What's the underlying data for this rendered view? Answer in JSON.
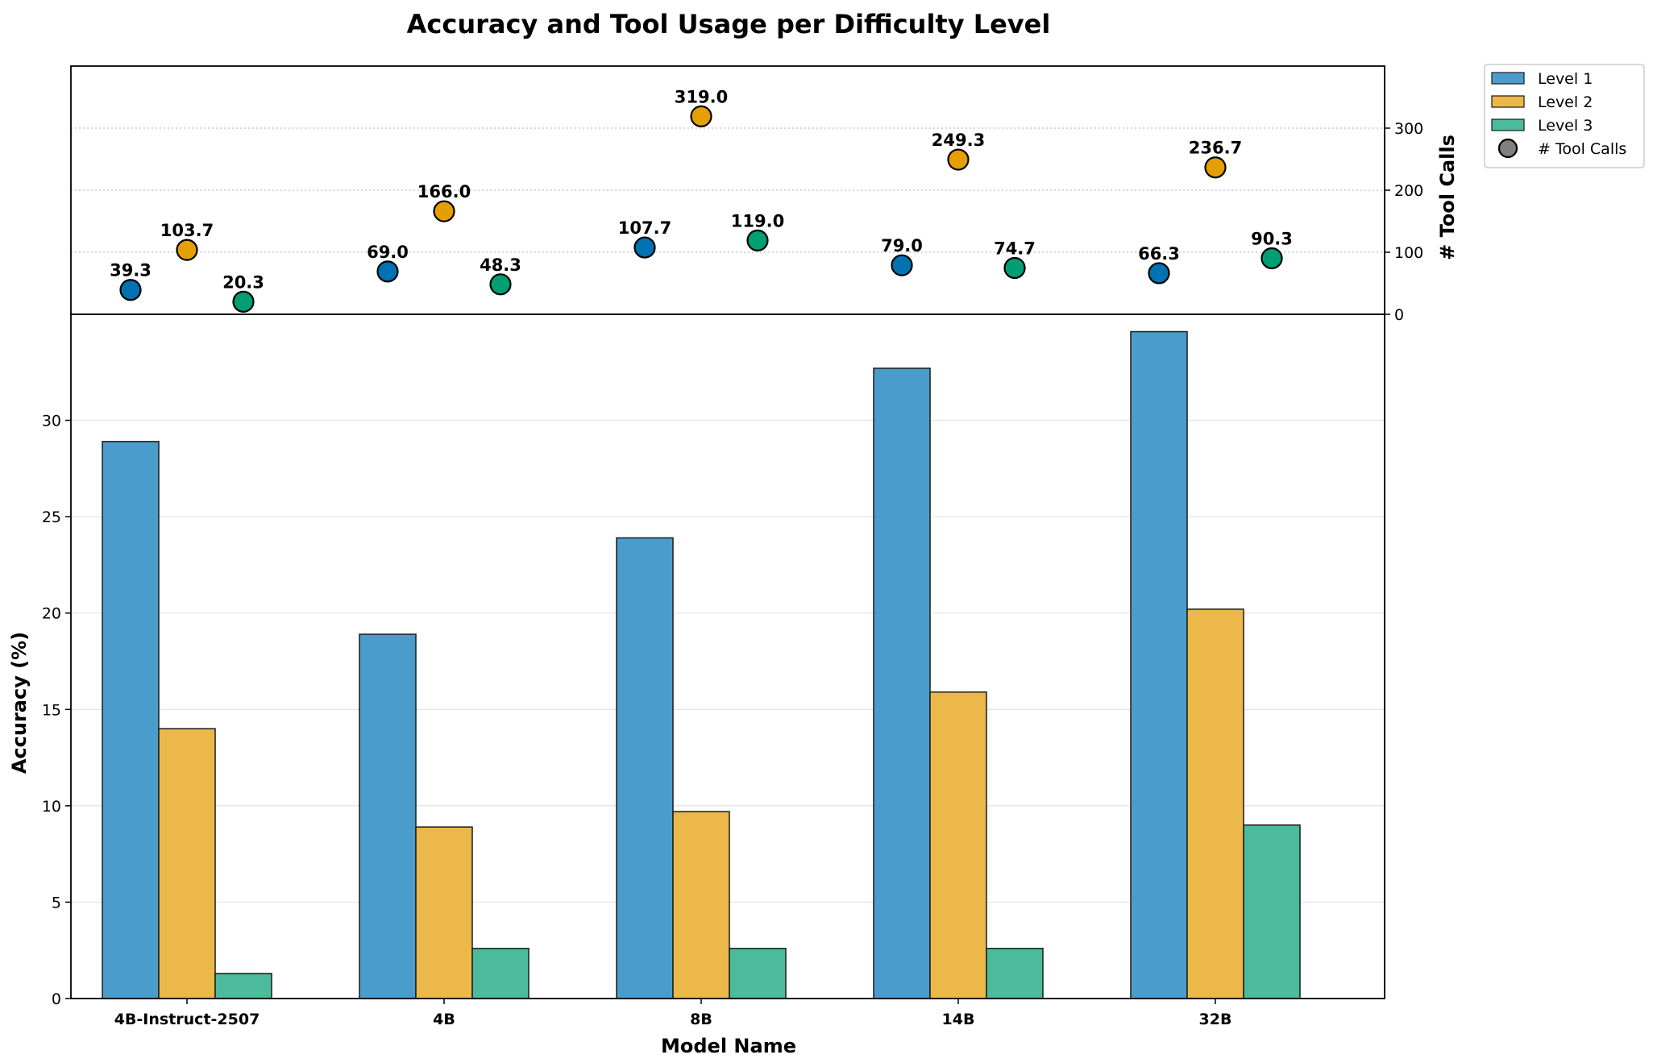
{
  "chart_data": {
    "type": "bar",
    "title": "Accuracy and Tool Usage per Difficulty Level",
    "xlabel": "Model Name",
    "ylabel": "Accuracy (%)",
    "ylabel_right": "# Tool Calls",
    "categories": [
      "4B-Instruct-2507",
      "4B",
      "8B",
      "14B",
      "32B"
    ],
    "ylim": [
      0,
      35.5
    ],
    "yticks": [
      0,
      5,
      10,
      15,
      20,
      25,
      30
    ],
    "ylim_right": [
      0,
      400
    ],
    "yticks_right": [
      0,
      100,
      200,
      300
    ],
    "legend_position": "outside top-right",
    "series": [
      {
        "name": "Level 1",
        "color": "#0072B2",
        "bar_color": "#4A9DCB",
        "values": [
          28.9,
          18.9,
          23.9,
          32.7,
          34.6
        ],
        "tool_calls": [
          39.3,
          69.0,
          107.7,
          79.0,
          66.3
        ],
        "tool_call_labels": [
          "39.3",
          "69.0",
          "107.7",
          "79.0",
          "66.3"
        ]
      },
      {
        "name": "Level 2",
        "color": "#E69F00",
        "bar_color": "#ECB84A",
        "values": [
          14.0,
          8.9,
          9.7,
          15.9,
          20.2
        ],
        "tool_calls": [
          103.7,
          166.0,
          319.0,
          249.3,
          236.7
        ],
        "tool_call_labels": [
          "103.7",
          "166.0",
          "319.0",
          "249.3",
          "236.7"
        ]
      },
      {
        "name": "Level 3",
        "color": "#009E73",
        "bar_color": "#4BBB9C",
        "values": [
          1.3,
          2.6,
          2.6,
          2.6,
          9.0
        ],
        "tool_calls": [
          20.3,
          48.3,
          119.0,
          74.7,
          90.3
        ],
        "tool_call_labels": [
          "20.3",
          "48.3",
          "119.0",
          "74.7",
          "90.3"
        ]
      }
    ],
    "legend_marker_label": "# Tool Calls",
    "legend_marker_color": "#808080"
  }
}
